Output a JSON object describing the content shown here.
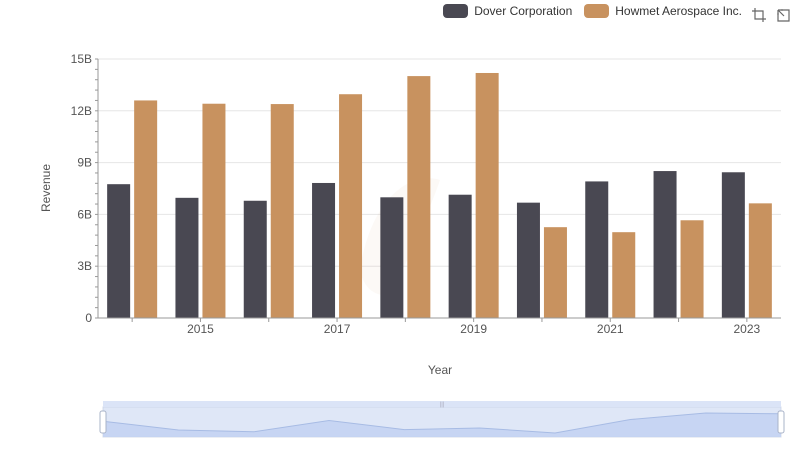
{
  "legend": {
    "items": [
      {
        "label": "Dover Corporation",
        "color": "#494852"
      },
      {
        "label": "Howmet Aerospace Inc.",
        "color": "#c8925f"
      }
    ]
  },
  "toolbox": {
    "icons": [
      "zoom-icon",
      "zoom-reset-icon"
    ]
  },
  "chart_data": {
    "type": "bar",
    "xlabel": "Year",
    "ylabel": "Revenue",
    "ylim": [
      0,
      15000000000
    ],
    "yticks": [
      "0",
      "3B",
      "6B",
      "9B",
      "12B",
      "15B"
    ],
    "x_tick_labels": [
      "2015",
      "2017",
      "2019",
      "2021",
      "2023"
    ],
    "categories": [
      "2014",
      "2015",
      "2016",
      "2017",
      "2018",
      "2019",
      "2020",
      "2021",
      "2022",
      "2023"
    ],
    "series": [
      {
        "name": "Dover Corporation",
        "color": "#494852",
        "values": [
          7750000000,
          6960000000,
          6790000000,
          7820000000,
          6990000000,
          7140000000,
          6680000000,
          7910000000,
          8510000000,
          8440000000
        ]
      },
      {
        "name": "Howmet Aerospace Inc.",
        "color": "#c8925f",
        "values": [
          12600000000,
          12410000000,
          12390000000,
          12960000000,
          14010000000,
          14190000000,
          5260000000,
          4970000000,
          5660000000,
          6640000000
        ]
      }
    ],
    "grid": true,
    "legend_position": "top-right",
    "datazoom": {
      "start": 0,
      "end": 100
    }
  }
}
